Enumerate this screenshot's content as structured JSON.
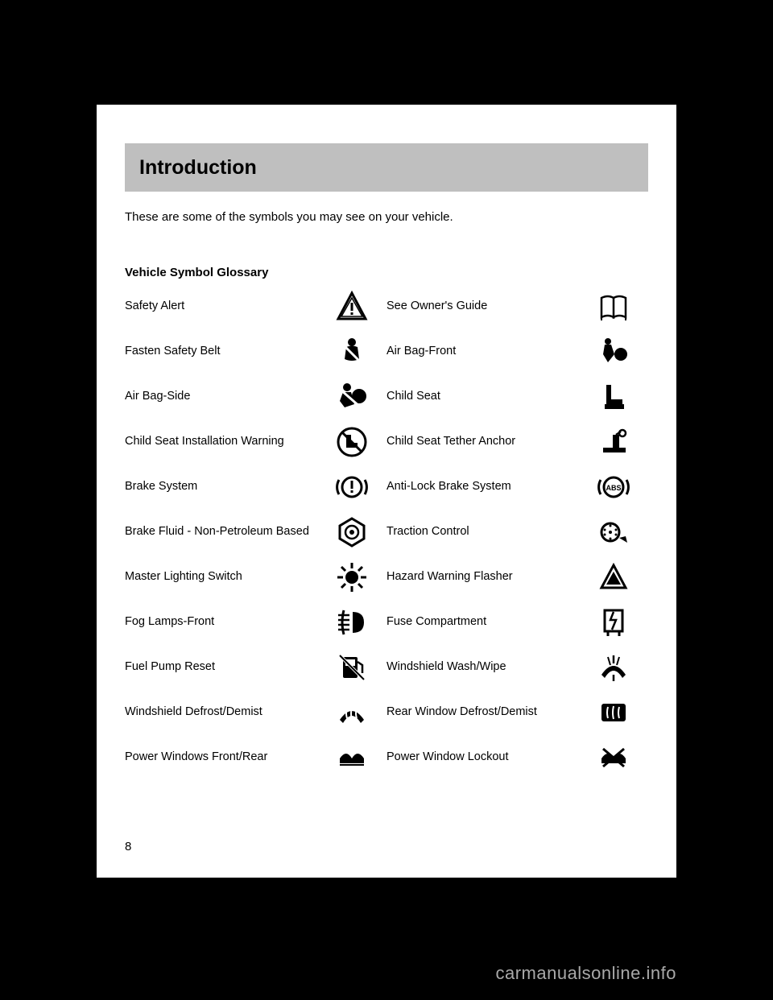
{
  "page": {
    "header": "Introduction",
    "intro": "These are some of the symbols you may see on your vehicle.",
    "page_number": "8",
    "footer_watermark": "carmanualsonline.info",
    "background_color": "#000000",
    "page_color": "#ffffff",
    "header_bg": "#bfbfbf",
    "text_color": "#000000",
    "icon_color": "#000000"
  },
  "glossary_title": "Vehicle Symbol Glossary",
  "rows": [
    {
      "left_label": "Safety Alert",
      "left_icon": "warning-triangle-icon",
      "right_label": "See Owner's Guide",
      "right_icon": "open-book-icon"
    },
    {
      "left_label": "Fasten Safety Belt",
      "left_icon": "seatbelt-icon",
      "right_label": "Air Bag-Front",
      "right_icon": "airbag-front-icon"
    },
    {
      "left_label": "Air Bag-Side",
      "left_icon": "airbag-side-icon",
      "right_label": "Child Seat",
      "right_icon": "child-seat-icon"
    },
    {
      "left_label": "Child Seat Installation Warning",
      "left_icon": "child-seat-warning-icon",
      "right_label": "Child Seat Tether Anchor",
      "right_icon": "child-tether-icon"
    },
    {
      "left_label": "Brake System",
      "left_icon": "brake-system-icon",
      "right_label": "Anti-Lock Brake System",
      "right_icon": "abs-icon"
    },
    {
      "left_label": "Brake Fluid - Non-Petroleum Based",
      "left_icon": "brake-fluid-icon",
      "right_label": "Traction Control",
      "right_icon": "traction-control-icon"
    },
    {
      "left_label": "Master Lighting Switch",
      "left_icon": "lighting-switch-icon",
      "right_label": "Hazard Warning Flasher",
      "right_icon": "hazard-icon"
    },
    {
      "left_label": "Fog Lamps-Front",
      "left_icon": "fog-lamp-icon",
      "right_label": "Fuse Compartment",
      "right_icon": "fuse-icon"
    },
    {
      "left_label": "Fuel Pump Reset",
      "left_icon": "fuel-reset-icon",
      "right_label": "Windshield Wash/Wipe",
      "right_icon": "wiper-icon"
    },
    {
      "left_label": "Windshield Defrost/Demist",
      "left_icon": "front-defrost-icon",
      "right_label": "Rear Window Defrost/Demist",
      "right_icon": "rear-defrost-icon"
    },
    {
      "left_label": "Power Windows Front/Rear",
      "left_icon": "power-window-icon",
      "right_label": "Power Window Lockout",
      "right_icon": "window-lockout-icon"
    }
  ]
}
